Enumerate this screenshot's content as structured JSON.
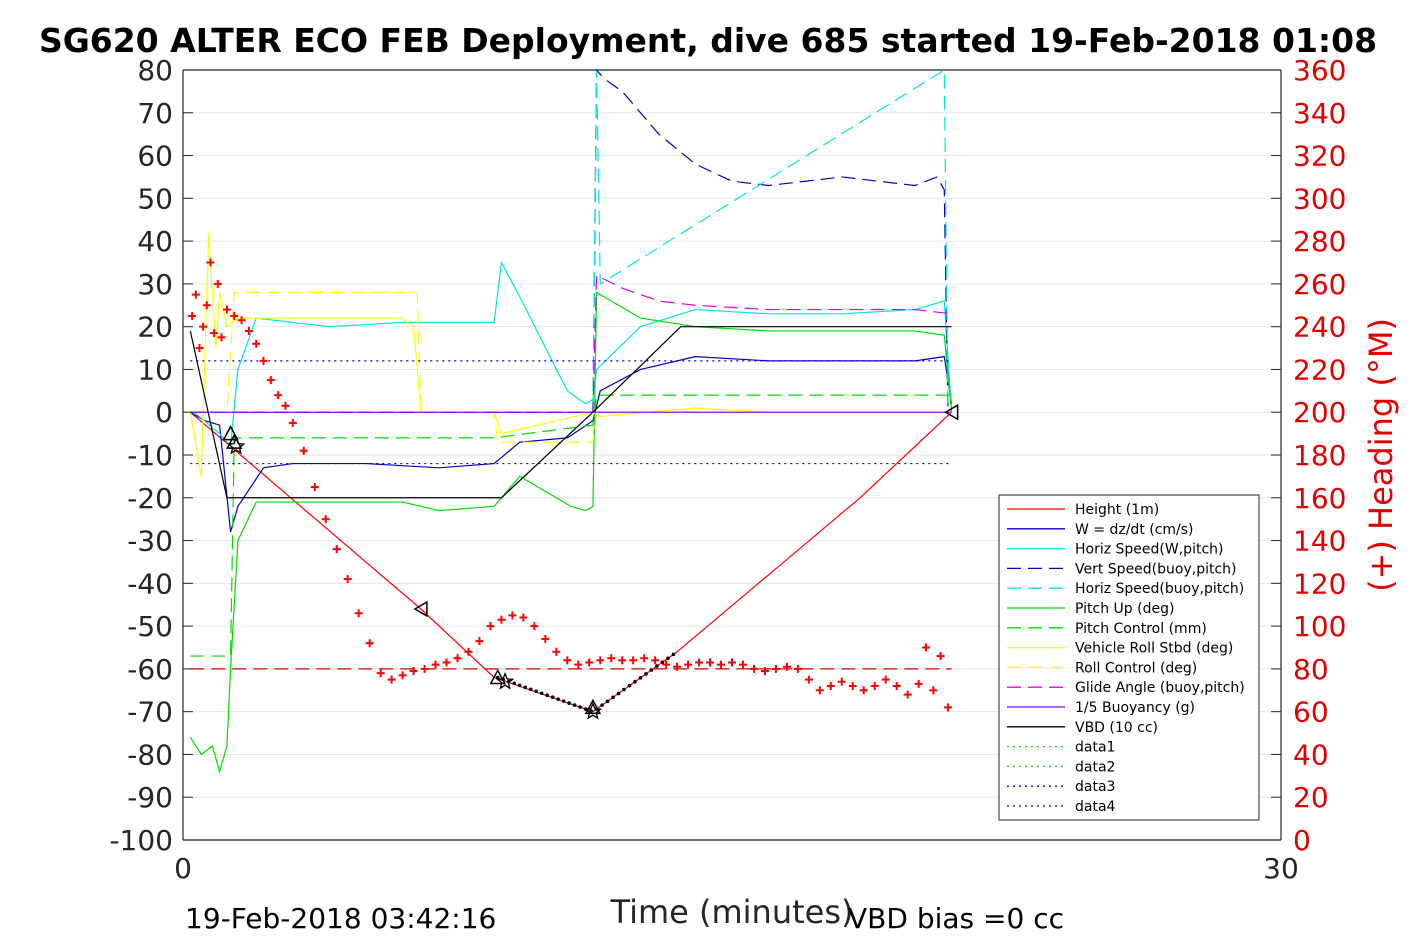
{
  "chart_data": {
    "type": "line",
    "title": "SG620 ALTER ECO FEB Deployment, dive 685 started 19-Feb-2018 01:08",
    "xlabel": "Time (minutes)",
    "ylabel_right": "(+) Heading (°M)",
    "footer_left": "19-Feb-2018 03:42:16",
    "footer_right": "VBD bias =0 cc",
    "xlim": [
      0,
      30
    ],
    "ylim_left": [
      -100,
      80
    ],
    "ylim_right": [
      0,
      360
    ],
    "x_ticks": [
      0,
      30
    ],
    "y_ticks_left": [
      80,
      70,
      60,
      50,
      40,
      30,
      20,
      10,
      0,
      -10,
      -20,
      -30,
      -40,
      -50,
      -60,
      -70,
      -80,
      -90,
      -100
    ],
    "y_ticks_right": [
      360,
      340,
      320,
      300,
      280,
      260,
      240,
      220,
      200,
      180,
      160,
      140,
      120,
      100,
      80,
      60,
      40,
      20,
      0
    ],
    "grid": "horizontal",
    "legend_position": "lower-right",
    "series": [
      {
        "name": "Height (1m)",
        "color": "#ff0000",
        "style": "solid",
        "x": [
          0.2,
          1.3,
          6.5,
          8.5,
          11.2,
          13.5,
          16,
          18.5,
          21
        ],
        "values": [
          0,
          -8,
          -46,
          -62,
          -70,
          -56,
          -38,
          -20,
          0
        ]
      },
      {
        "name": "W = dz/dt (cm/s)",
        "color": "#0000cc",
        "style": "solid",
        "x": [
          0.2,
          0.6,
          1.0,
          1.3,
          1.5,
          2.2,
          3,
          5,
          7,
          8.5,
          9.2,
          10.5,
          11.2,
          11.4,
          12.5,
          14,
          16,
          18,
          20,
          20.8,
          21
        ],
        "values": [
          0,
          -2,
          -3,
          -28,
          -22,
          -13,
          -12,
          -12,
          -13,
          -12,
          -7,
          -6,
          -2,
          5,
          10,
          13,
          12,
          12,
          12,
          13,
          2
        ]
      },
      {
        "name": "Horiz Speed(W,pitch)",
        "color": "#00e5e5",
        "style": "solid",
        "x": [
          0.3,
          1.0,
          1.3,
          1.5,
          2,
          4,
          6,
          8,
          8.5,
          8.7,
          9.2,
          10.5,
          11,
          11.2,
          11.3,
          12.5,
          14,
          16,
          18,
          20,
          20.8,
          21
        ],
        "values": [
          0,
          -5,
          -8,
          10,
          22,
          20,
          21,
          21,
          21,
          35,
          27,
          5,
          2,
          3,
          10,
          20,
          24,
          23,
          23,
          24,
          26,
          0
        ]
      },
      {
        "name": "Vert Speed(buoy,pitch)",
        "color": "#0000cc",
        "style": "dashed",
        "x": [
          11.2,
          11.3,
          11.5,
          12,
          13,
          14,
          15,
          16,
          17,
          18,
          19,
          20,
          20.6,
          20.8,
          20.9
        ],
        "values": [
          0,
          80,
          78,
          75,
          65,
          58,
          54,
          53,
          54,
          55,
          54,
          53,
          55,
          52,
          0
        ]
      },
      {
        "name": "Horiz Speed(buoy,pitch)",
        "color": "#00e5e5",
        "style": "dashed",
        "x": [
          11.2,
          11.3,
          11.4,
          20.8,
          20.9
        ],
        "values": [
          0,
          80,
          30,
          80,
          0
        ]
      },
      {
        "name": "Pitch Up (deg)",
        "color": "#00dd00",
        "style": "solid",
        "x": [
          0.2,
          0.5,
          0.8,
          1.0,
          1.2,
          1.3,
          1.5,
          2,
          4,
          6,
          7,
          8.5,
          9.2,
          10,
          10.6,
          11,
          11.2,
          11.3,
          11.5,
          12.5,
          14,
          16,
          18,
          20,
          20.8,
          21
        ],
        "values": [
          -76,
          -80,
          -78,
          -84,
          -78,
          -60,
          -30,
          -21,
          -21,
          -21,
          -23,
          -22,
          -15,
          -19,
          -22,
          -23,
          -22,
          28,
          27,
          22,
          20,
          19,
          19,
          19,
          18,
          0
        ]
      },
      {
        "name": "Pitch Control (mm)",
        "color": "#00dd00",
        "style": "dashed",
        "x": [
          0.2,
          1.2,
          1.3,
          1.4,
          8.5,
          11.2,
          11.3,
          21
        ],
        "values": [
          -57,
          -57,
          -57,
          -6,
          -6,
          -3,
          4,
          4
        ]
      },
      {
        "name": "Vehicle Roll Stbd (deg)",
        "color": "#ffff00",
        "style": "solid",
        "x": [
          0.2,
          0.5,
          0.7,
          0.9,
          1.0,
          1.2,
          1.5,
          2,
          4,
          6,
          6.3,
          6.5,
          8.5,
          8.7,
          11.2,
          11.4,
          14,
          16,
          18,
          20,
          21
        ],
        "values": [
          0,
          -15,
          42,
          15,
          28,
          20,
          22,
          22,
          22,
          22,
          20,
          0,
          0,
          -5,
          0,
          -1,
          1,
          0,
          0,
          0,
          0
        ]
      },
      {
        "name": "Roll Control (deg)",
        "color": "#ffff00",
        "style": "dashed",
        "x": [
          0.2,
          1.2,
          1.4,
          6.4,
          6.5,
          8.5,
          8.6,
          11.2,
          11.3,
          21
        ],
        "values": [
          0,
          0,
          28,
          28,
          0,
          0,
          -7,
          -7,
          0,
          0
        ]
      },
      {
        "name": "Glide Angle (buoy,pitch)",
        "color": "#e000e0",
        "style": "dashed",
        "x": [
          0.2,
          11.2,
          11.3,
          12,
          13,
          14,
          16,
          18,
          20,
          21
        ],
        "values": [
          0,
          0,
          32,
          29,
          26,
          25,
          24,
          24,
          24,
          23
        ]
      },
      {
        "name": "1/5 Buoyancy (g)",
        "color": "#9900ff",
        "style": "solid",
        "x": [
          0.2,
          11.2,
          11.3,
          21
        ],
        "values": [
          0,
          0,
          0,
          0
        ]
      },
      {
        "name": "VBD (10 cc)",
        "color": "#000000",
        "style": "solid",
        "x": [
          0.2,
          1.2,
          8.7,
          11.2,
          13.6,
          21
        ],
        "values": [
          19,
          -20,
          -20,
          0,
          20,
          20
        ]
      },
      {
        "name": "data1",
        "color": "#00dd00",
        "style": "dotted",
        "x": [],
        "values": []
      },
      {
        "name": "data2",
        "color": "#00dd00",
        "style": "dotted",
        "x": [],
        "values": []
      },
      {
        "name": "data3",
        "color": "#0000cc",
        "style": "dotted",
        "x": [
          0.2,
          21
        ],
        "values": [
          12,
          12
        ]
      },
      {
        "name": "data4",
        "color": "#0000cc",
        "style": "dotted",
        "x": [
          0.2,
          21
        ],
        "values": [
          -12,
          -12
        ]
      }
    ],
    "extra_lines": [
      {
        "color": "#cc0000",
        "style": "dashed",
        "axis": "left",
        "x": [
          0.2,
          21
        ],
        "values": [
          -60,
          -60
        ]
      },
      {
        "color": "#9900ff",
        "style": "dashed",
        "axis": "left",
        "x": [
          0.2,
          11.2
        ],
        "values": [
          0,
          0
        ]
      }
    ],
    "heading": {
      "axis": "right",
      "marker": "+",
      "color": "#ff0000",
      "x": [
        0.25,
        0.35,
        0.45,
        0.55,
        0.65,
        0.75,
        0.85,
        0.95,
        1.05,
        1.2,
        1.4,
        1.6,
        1.8,
        2.0,
        2.2,
        2.4,
        2.6,
        2.8,
        3.0,
        3.3,
        3.6,
        3.9,
        4.2,
        4.5,
        4.8,
        5.1,
        5.4,
        5.7,
        6.0,
        6.3,
        6.6,
        6.9,
        7.2,
        7.5,
        7.8,
        8.1,
        8.4,
        8.7,
        9.0,
        9.3,
        9.6,
        9.9,
        10.2,
        10.5,
        10.8,
        11.1,
        11.4,
        11.7,
        12.0,
        12.3,
        12.6,
        12.9,
        13.2,
        13.5,
        13.8,
        14.1,
        14.4,
        14.7,
        15.0,
        15.3,
        15.6,
        15.9,
        16.2,
        16.5,
        16.8,
        17.1,
        17.4,
        17.7,
        18.0,
        18.3,
        18.6,
        18.9,
        19.2,
        19.5,
        19.8,
        20.1,
        20.3,
        20.5,
        20.7,
        20.9
      ],
      "values": [
        245,
        255,
        230,
        240,
        250,
        270,
        237,
        260,
        235,
        248,
        245,
        243,
        238,
        232,
        224,
        215,
        208,
        203,
        195,
        182,
        165,
        150,
        136,
        122,
        106,
        92,
        78,
        75,
        77,
        79,
        80,
        82,
        83,
        85,
        88,
        93,
        100,
        103,
        105,
        104,
        100,
        94,
        88,
        84,
        82,
        83,
        84,
        85,
        84,
        84,
        85,
        84,
        82,
        81,
        82,
        83,
        83,
        82,
        83,
        82,
        80,
        79,
        80,
        81,
        80,
        75,
        70,
        72,
        74,
        72,
        70,
        72,
        75,
        72,
        68,
        73,
        90,
        70,
        86,
        62
      ]
    },
    "markers": [
      {
        "shape": "triangle-left",
        "x": 6.5,
        "y": -46
      },
      {
        "shape": "triangle-left",
        "x": 21,
        "y": 0
      },
      {
        "shape": "triangle-up",
        "x": 8.6,
        "y": -62
      },
      {
        "shape": "triangle-up",
        "x": 1.3,
        "y": -5
      },
      {
        "shape": "triangle-up",
        "x": 1.4,
        "y": -7
      },
      {
        "shape": "star",
        "x": 1.45,
        "y": -8
      },
      {
        "shape": "star",
        "x": 8.8,
        "y": -63
      },
      {
        "shape": "star",
        "x": 11.2,
        "y": -70
      },
      {
        "shape": "triangle-up",
        "x": 11.2,
        "y": -69
      }
    ]
  }
}
